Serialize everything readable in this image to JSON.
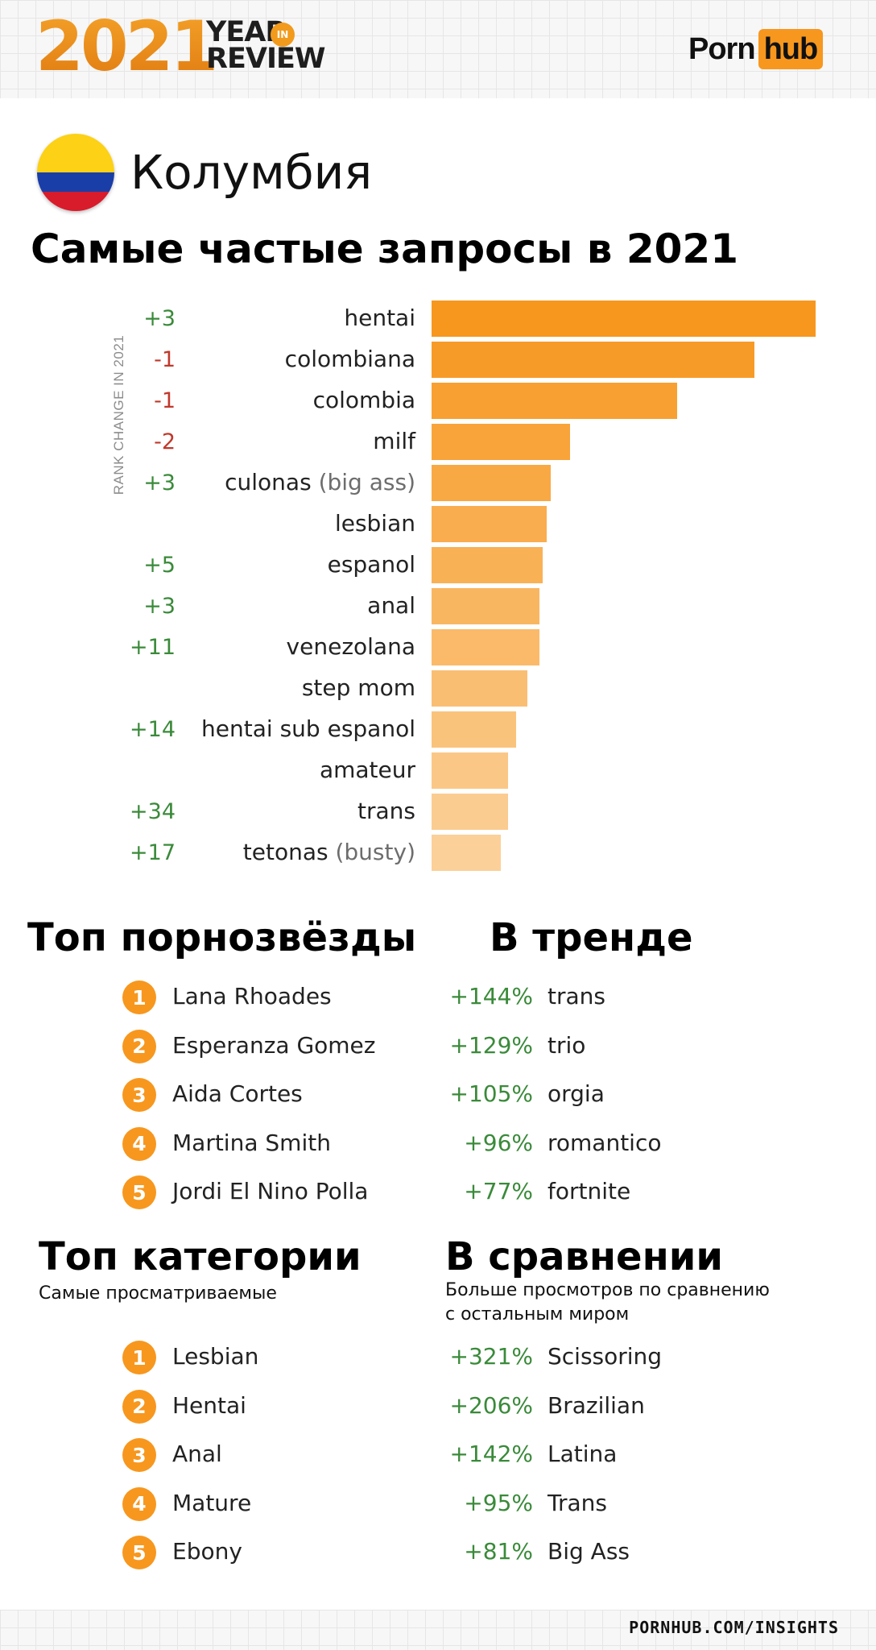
{
  "header": {
    "year": "2021",
    "year_in_review": "YEAR\nREVIEW",
    "in_badge": "IN",
    "brand_part1": "Porn",
    "brand_part2": "hub"
  },
  "country": "Колумбия",
  "main_title": "Самые частые запросы в 2021",
  "chart_data": {
    "type": "bar",
    "orientation": "horizontal",
    "rank_axis_label": "RANK CHANGE IN 2021",
    "bar_color": "#f7971e",
    "rows": [
      {
        "term": "hentai",
        "sub": "",
        "rank_change": "+3",
        "value": 100
      },
      {
        "term": "colombiana",
        "sub": "",
        "rank_change": "-1",
        "value": 84
      },
      {
        "term": "colombia",
        "sub": "",
        "rank_change": "-1",
        "value": 64
      },
      {
        "term": "milf",
        "sub": "",
        "rank_change": "-2",
        "value": 36
      },
      {
        "term": "culonas",
        "sub": "(big ass)",
        "rank_change": "+3",
        "value": 31
      },
      {
        "term": "lesbian",
        "sub": "",
        "rank_change": "",
        "value": 30
      },
      {
        "term": "espanol",
        "sub": "",
        "rank_change": "+5",
        "value": 29
      },
      {
        "term": "anal",
        "sub": "",
        "rank_change": "+3",
        "value": 28
      },
      {
        "term": "venezolana",
        "sub": "",
        "rank_change": "+11",
        "value": 28
      },
      {
        "term": "step mom",
        "sub": "",
        "rank_change": "",
        "value": 25
      },
      {
        "term": "hentai sub espanol",
        "sub": "",
        "rank_change": "+14",
        "value": 22
      },
      {
        "term": "amateur",
        "sub": "",
        "rank_change": "",
        "value": 20
      },
      {
        "term": "trans",
        "sub": "",
        "rank_change": "+34",
        "value": 20
      },
      {
        "term": "tetonas",
        "sub": "(busty)",
        "rank_change": "+17",
        "value": 18
      }
    ]
  },
  "top_pornstars": {
    "title": "Топ порнозвёзды",
    "items": [
      {
        "rank": "1",
        "name": "Lana Rhoades"
      },
      {
        "rank": "2",
        "name": "Esperanza Gomez"
      },
      {
        "rank": "3",
        "name": "Aida Cortes"
      },
      {
        "rank": "4",
        "name": "Martina Smith"
      },
      {
        "rank": "5",
        "name": "Jordi El Nino Polla"
      }
    ]
  },
  "trending": {
    "title": "В тренде",
    "items": [
      {
        "pct": "+144%",
        "term": "trans"
      },
      {
        "pct": "+129%",
        "term": "trio"
      },
      {
        "pct": "+105%",
        "term": "orgia"
      },
      {
        "pct": "+96%",
        "term": "romantico"
      },
      {
        "pct": "+77%",
        "term": "fortnite"
      }
    ]
  },
  "top_categories": {
    "title": "Топ категории",
    "subtitle": "Самые просматриваемые",
    "items": [
      {
        "rank": "1",
        "name": "Lesbian"
      },
      {
        "rank": "2",
        "name": "Hentai"
      },
      {
        "rank": "3",
        "name": "Anal"
      },
      {
        "rank": "4",
        "name": "Mature"
      },
      {
        "rank": "5",
        "name": "Ebony"
      }
    ]
  },
  "comparison": {
    "title": "В сравнении",
    "subtitle": "Больше просмотров по сравнению\nс остальным миром",
    "items": [
      {
        "pct": "+321%",
        "term": "Scissoring"
      },
      {
        "pct": "+206%",
        "term": "Brazilian"
      },
      {
        "pct": "+142%",
        "term": "Latina"
      },
      {
        "pct": "+95%",
        "term": "Trans"
      },
      {
        "pct": "+81%",
        "term": "Big Ass"
      }
    ]
  },
  "footer": {
    "url": "PORNHUB.COM/INSIGHTS"
  }
}
